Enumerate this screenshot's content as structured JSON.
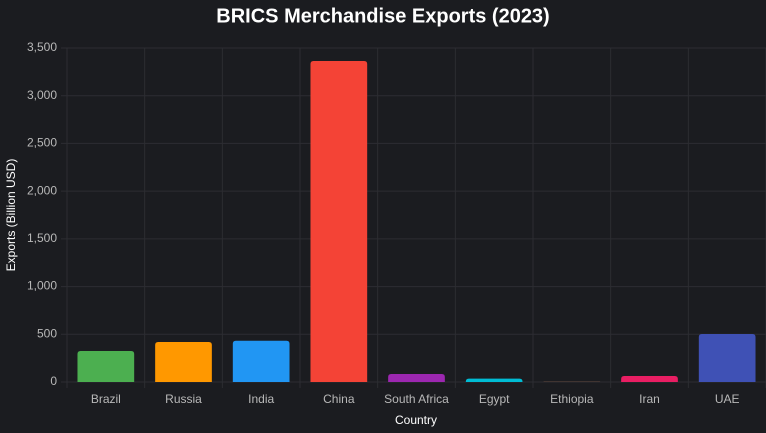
{
  "chart_data": {
    "type": "bar",
    "title": "BRICS Merchandise Exports (2023)",
    "x_label": "Country",
    "y_label": "Exports (Billion USD)",
    "categories": [
      "Brazil",
      "Russia",
      "India",
      "China",
      "South Africa",
      "Egypt",
      "Ethiopia",
      "Iran",
      "UAE"
    ],
    "values": [
      325,
      419,
      432,
      3364,
      84,
      35,
      4,
      63,
      503
    ],
    "colors": [
      "#4caf50",
      "#ff9800",
      "#2196f3",
      "#f44336",
      "#9c27b0",
      "#00bcd4",
      "#795548",
      "#e91e63",
      "#3f51b5"
    ],
    "ylim": [
      0,
      3500
    ],
    "yticks": [
      0,
      500,
      {
        "value": 1000,
        "label": "1,000"
      },
      {
        "value": 1500,
        "label": "1,500"
      },
      {
        "value": 2000,
        "label": "2,000"
      },
      {
        "value": 2500,
        "label": "2,500"
      },
      {
        "value": 3000,
        "label": "3,000"
      },
      {
        "value": 3500,
        "label": "3,500"
      }
    ],
    "grid": true
  }
}
